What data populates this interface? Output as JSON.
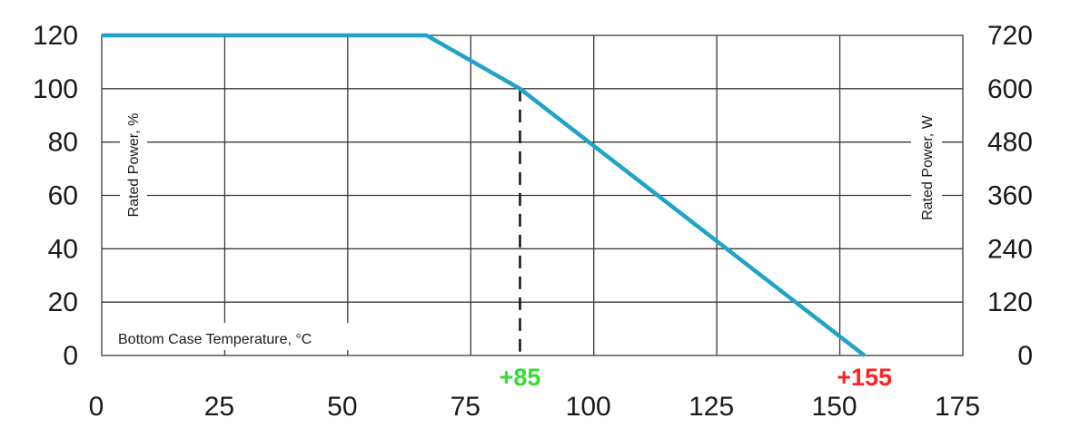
{
  "chart_data": {
    "type": "line",
    "xlabel": "Bottom Case Temperature, °C",
    "ylabel": "Rated Power, %",
    "y2label": "Rated Power, W",
    "xlim": [
      0,
      175
    ],
    "ylim": [
      0,
      120
    ],
    "y2lim": [
      0,
      720
    ],
    "grid": true,
    "x_ticks": [
      0,
      25,
      50,
      75,
      100,
      125,
      150,
      175
    ],
    "x_tick_labels": [
      "0",
      "25",
      "50",
      "75",
      "100",
      "125",
      "150",
      "175"
    ],
    "y_ticks": [
      0,
      20,
      40,
      60,
      80,
      100,
      120
    ],
    "y_tick_labels": [
      "0",
      "20",
      "40",
      "60",
      "80",
      "100",
      "120"
    ],
    "y2_ticks": [
      0,
      120,
      240,
      360,
      480,
      600,
      720
    ],
    "y2_tick_labels": [
      "0",
      "120",
      "240",
      "360",
      "480",
      "600",
      "720"
    ],
    "series": [
      {
        "color": "#1fa3c8",
        "x": [
          0,
          66,
          85,
          155
        ],
        "y": [
          120,
          120,
          100,
          0
        ]
      }
    ],
    "annotations": [
      {
        "label": "+85",
        "x": 85,
        "color": "#33dd33",
        "dashed_marker": true
      },
      {
        "label": "+155",
        "x": 155,
        "color": "#ff2222",
        "dashed_marker": false
      }
    ]
  }
}
